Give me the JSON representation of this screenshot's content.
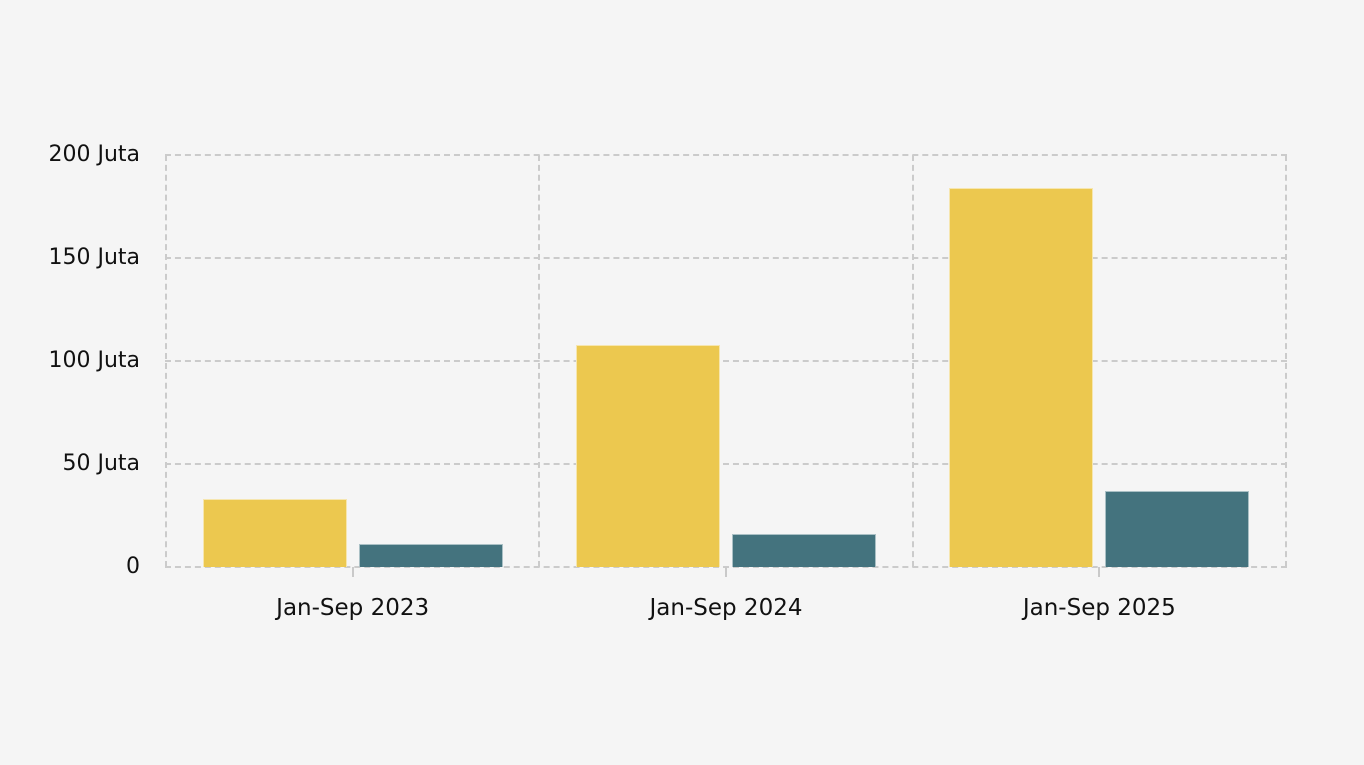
{
  "chart_data": {
    "type": "bar",
    "title": "",
    "categories": [
      "Jan-Sep 2023",
      "Jan-Sep 2024",
      "Jan-Sep 2025"
    ],
    "series": [
      {
        "id": "yellow-series",
        "color": "#ecc84f",
        "values": [
          33,
          108,
          184
        ]
      },
      {
        "id": "teal-series",
        "color": "#44737e",
        "values": [
          11,
          16,
          37
        ]
      }
    ],
    "y_axis": {
      "unit": "Juta",
      "ticks": [
        0,
        50,
        100,
        150,
        200
      ],
      "tick_labels": [
        "0",
        "50 Juta",
        "100 Juta",
        "150 Juta",
        "200 Juta"
      ],
      "ylim": [
        0,
        200
      ]
    },
    "x_axis": {
      "tick_labels": [
        "Jan-Sep 2023",
        "Jan-Sep 2024",
        "Jan-Sep 2025"
      ]
    },
    "legend": "none",
    "grid": "dashed",
    "colors": {
      "background": "#f5f5f5",
      "gridline": "#cbcbcb",
      "tick_mark": "#c9c9c9",
      "text": "#111111"
    }
  }
}
